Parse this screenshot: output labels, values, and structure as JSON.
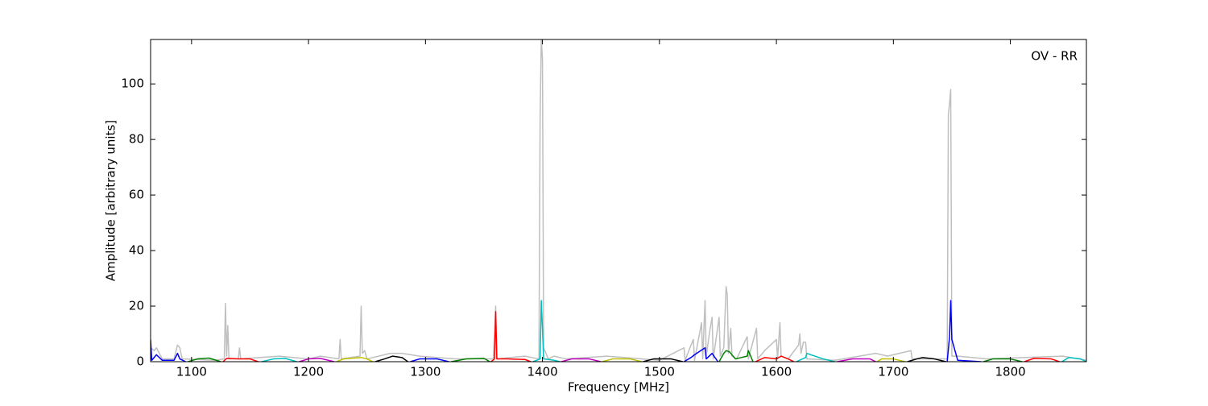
{
  "chart_data": {
    "type": "line",
    "annotation": "OV - RR",
    "x_label": "Frequency [MHz]",
    "y_label": "Amplitude [arbitrary units]",
    "xlim": [
      1065,
      1865
    ],
    "ylim": [
      0,
      116
    ],
    "xticks": [
      1100,
      1200,
      1300,
      1400,
      1500,
      1600,
      1700,
      1800
    ],
    "yticks": [
      0,
      20,
      40,
      60,
      80,
      100
    ],
    "series": [
      {
        "color": "#bfbfbf",
        "x": [
          1065,
          1068,
          1070,
          1075,
          1085,
          1088,
          1090,
          1092,
          1120,
          1128,
          1129,
          1130,
          1131,
          1132,
          1140,
          1141,
          1142,
          1175,
          1200,
          1210,
          1226,
          1227,
          1228,
          1244,
          1245,
          1246,
          1248,
          1250,
          1270,
          1280,
          1295,
          1325,
          1358,
          1360,
          1361,
          1385,
          1397,
          1398,
          1399,
          1400,
          1401,
          1405,
          1410,
          1420,
          1455,
          1500,
          1521,
          1522,
          1527,
          1529,
          1530,
          1536,
          1537,
          1539,
          1540,
          1543,
          1545,
          1546,
          1551,
          1552,
          1555,
          1557,
          1558,
          1559,
          1561,
          1562,
          1566,
          1575,
          1576,
          1583,
          1584,
          1590,
          1600,
          1601,
          1603,
          1604,
          1610,
          1619,
          1620,
          1621,
          1623,
          1625,
          1626,
          1650,
          1685,
          1695,
          1715,
          1716,
          1740,
          1746,
          1747,
          1748,
          1749,
          1750,
          1755,
          1780,
          1845,
          1865
        ],
        "values": [
          5,
          4,
          5,
          1,
          1,
          6,
          5,
          1,
          0.5,
          1,
          21,
          2,
          13,
          1,
          1,
          5,
          1,
          2,
          1,
          2,
          1,
          8,
          1,
          2,
          20,
          3,
          4,
          1,
          3,
          3,
          2,
          1,
          1,
          20,
          1,
          2,
          1,
          88,
          116,
          109,
          5,
          1,
          2,
          1,
          2,
          0.5,
          5,
          0.5,
          6,
          8,
          0.5,
          14,
          1,
          22,
          2,
          11,
          16,
          1,
          16,
          2,
          5,
          27,
          24,
          3,
          12,
          2,
          1,
          9,
          1,
          12,
          1,
          4,
          8,
          1,
          14,
          2,
          1,
          6,
          10,
          3,
          7,
          7,
          1,
          0.5,
          3,
          2,
          4,
          1,
          1,
          1,
          89,
          93,
          98,
          2,
          2,
          1,
          2,
          0.5
        ]
      },
      {
        "color": "#0000ff",
        "x": [
          1065,
          1066,
          1070,
          1075,
          1085,
          1088,
          1090,
          1095
        ],
        "values": [
          8,
          0.5,
          2.5,
          0.5,
          0.5,
          3,
          1,
          0
        ]
      },
      {
        "color": "#008000",
        "x": [
          1097,
          1105,
          1115,
          1125
        ],
        "values": [
          0,
          1,
          1.3,
          0
        ]
      },
      {
        "color": "#ff0000",
        "x": [
          1127,
          1130,
          1140,
          1150,
          1157
        ],
        "values": [
          0,
          1.2,
          1,
          1,
          0
        ]
      },
      {
        "color": "#00bfbf",
        "x": [
          1160,
          1170,
          1180,
          1190
        ],
        "values": [
          0,
          1,
          1.2,
          0
        ]
      },
      {
        "color": "#bf00bf",
        "x": [
          1192,
          1200,
          1210,
          1222
        ],
        "values": [
          0,
          1,
          1.2,
          0
        ]
      },
      {
        "color": "#bfbf00",
        "x": [
          1224,
          1230,
          1245,
          1250,
          1255
        ],
        "values": [
          0,
          1,
          1.5,
          1,
          0
        ]
      },
      {
        "color": "#000000",
        "x": [
          1257,
          1265,
          1272,
          1280,
          1285
        ],
        "values": [
          0,
          1,
          2,
          1.5,
          0
        ]
      },
      {
        "color": "#0000ff",
        "x": [
          1287,
          1295,
          1310,
          1320
        ],
        "values": [
          0,
          1,
          1,
          0
        ]
      },
      {
        "color": "#008000",
        "x": [
          1322,
          1335,
          1350,
          1355
        ],
        "values": [
          0,
          1,
          1.2,
          0
        ]
      },
      {
        "color": "#ff0000",
        "x": [
          1356,
          1359,
          1360,
          1361,
          1370,
          1385,
          1390
        ],
        "values": [
          0,
          1,
          18,
          1,
          1,
          0.8,
          0
        ]
      },
      {
        "color": "#00bfbf",
        "x": [
          1392,
          1398,
          1399,
          1400,
          1401,
          1410,
          1415
        ],
        "values": [
          0,
          1,
          22,
          12,
          1,
          0.5,
          0
        ]
      },
      {
        "color": "#bf00bf",
        "x": [
          1416,
          1425,
          1440,
          1450
        ],
        "values": [
          0,
          1,
          1,
          0
        ]
      },
      {
        "color": "#bfbf00",
        "x": [
          1451,
          1460,
          1475,
          1485
        ],
        "values": [
          0,
          1,
          1,
          0
        ]
      },
      {
        "color": "#000000",
        "x": [
          1486,
          1495,
          1510,
          1520
        ],
        "values": [
          0,
          1,
          1,
          0
        ]
      },
      {
        "color": "#0000ff",
        "x": [
          1521,
          1527,
          1530,
          1539,
          1540,
          1545,
          1550
        ],
        "values": [
          0,
          1.5,
          2.5,
          5,
          1,
          3,
          0
        ]
      },
      {
        "color": "#008000",
        "x": [
          1551,
          1555,
          1557,
          1560,
          1565,
          1575,
          1576,
          1580
        ],
        "values": [
          0,
          3,
          4,
          3.5,
          1,
          2,
          4,
          0
        ]
      },
      {
        "color": "#ff0000",
        "x": [
          1582,
          1590,
          1600,
          1604,
          1610,
          1615
        ],
        "values": [
          0,
          1.5,
          1,
          2,
          1,
          0
        ]
      },
      {
        "color": "#00bfbf",
        "x": [
          1617,
          1625,
          1626,
          1640,
          1650
        ],
        "values": [
          0,
          1.5,
          3,
          1,
          0
        ]
      },
      {
        "color": "#bf00bf",
        "x": [
          1652,
          1665,
          1680,
          1685
        ],
        "values": [
          0,
          1,
          1,
          0
        ]
      },
      {
        "color": "#bfbf00",
        "x": [
          1686,
          1690,
          1700,
          1710
        ],
        "values": [
          0,
          1,
          1,
          0
        ]
      },
      {
        "color": "#000000",
        "x": [
          1712,
          1720,
          1725,
          1735,
          1745
        ],
        "values": [
          0,
          1,
          1.5,
          1,
          0
        ]
      },
      {
        "color": "#0000ff",
        "x": [
          1746,
          1748,
          1749,
          1750,
          1755,
          1775
        ],
        "values": [
          0,
          9,
          22,
          8,
          0.5,
          0
        ]
      },
      {
        "color": "#008000",
        "x": [
          1777,
          1785,
          1800,
          1810
        ],
        "values": [
          0,
          1,
          1,
          0
        ]
      },
      {
        "color": "#ff0000",
        "x": [
          1812,
          1820,
          1835,
          1842
        ],
        "values": [
          0,
          1.2,
          1,
          0
        ]
      },
      {
        "color": "#00bfbf",
        "x": [
          1844,
          1850,
          1860,
          1865
        ],
        "values": [
          0,
          1.5,
          1,
          0
        ]
      }
    ]
  }
}
